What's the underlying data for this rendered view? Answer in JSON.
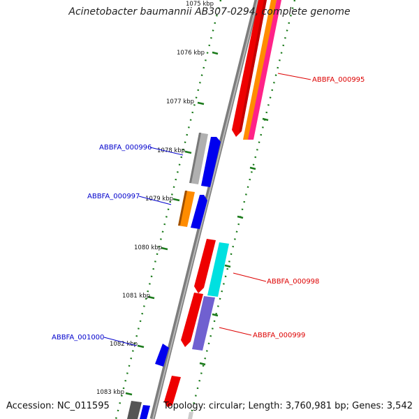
{
  "title": "Acinetobacter baumannii AB307-0294, complete genome",
  "footer": {
    "accession": "Accession: NC_011595",
    "stats": "Topology: circular; Length: 3,760,981 bp; Genes: 3,542"
  },
  "ruler_labels": [
    "1075 kbp",
    "1076 kbp",
    "1077 kbp",
    "1078 kbp",
    "1079 kbp",
    "1080 kbp",
    "1081 kbp",
    "1082 kbp",
    "1083 kbp"
  ],
  "gene_labels": [
    {
      "text": "ABBFA_000995",
      "color": "#dd0000"
    },
    {
      "text": "ABBFA_000996",
      "color": "#0000cc"
    },
    {
      "text": "ABBFA_000997",
      "color": "#0000cc"
    },
    {
      "text": "ABBFA_000998",
      "color": "#dd0000"
    },
    {
      "text": "ABBFA_000999",
      "color": "#dd0000"
    },
    {
      "text": "ABBFA_001000",
      "color": "#0000cc"
    }
  ],
  "colors": {
    "backbone": "#8c8c8c",
    "tick": "#1a7a1a",
    "red": "#ee0000",
    "orange": "#ff8c00",
    "pink": "#ff2288",
    "grey": "#b0b0b0",
    "blue": "#0000ee",
    "cyan": "#00e0e0",
    "purple": "#7060d0",
    "darkgrey": "#555555"
  }
}
